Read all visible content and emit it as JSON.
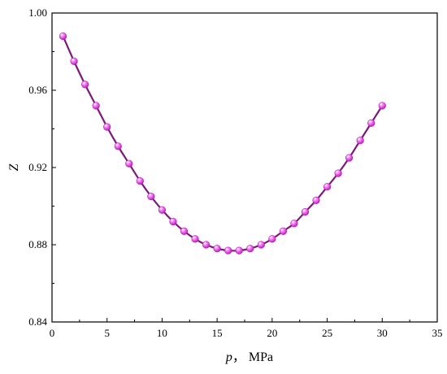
{
  "chart_data": {
    "type": "line",
    "xlabel_var": "p",
    "xlabel_unit": "， MPa",
    "ylabel": "Z",
    "xlim": [
      0,
      35
    ],
    "ylim": [
      0.84,
      1.0
    ],
    "xticks": [
      "0",
      "5",
      "10",
      "15",
      "20",
      "25",
      "30",
      "35"
    ],
    "yticks": [
      "0.84",
      "0.88",
      "0.92",
      "0.96",
      "1.00"
    ],
    "grid": false,
    "colors": {
      "line": "#7a1a7a",
      "marker": "#ee55ee"
    },
    "series": [
      {
        "x": [
          1,
          2,
          3,
          4,
          5,
          6,
          7,
          8,
          9,
          10,
          11,
          12,
          13,
          14,
          15,
          16,
          17,
          18,
          19,
          20,
          21,
          22,
          23,
          24,
          25,
          26,
          27,
          28,
          29,
          30
        ],
        "values": [
          0.988,
          0.975,
          0.963,
          0.952,
          0.941,
          0.931,
          0.922,
          0.913,
          0.905,
          0.898,
          0.892,
          0.887,
          0.883,
          0.88,
          0.878,
          0.877,
          0.877,
          0.878,
          0.88,
          0.883,
          0.887,
          0.891,
          0.897,
          0.903,
          0.91,
          0.917,
          0.925,
          0.934,
          0.943,
          0.952
        ]
      }
    ]
  }
}
